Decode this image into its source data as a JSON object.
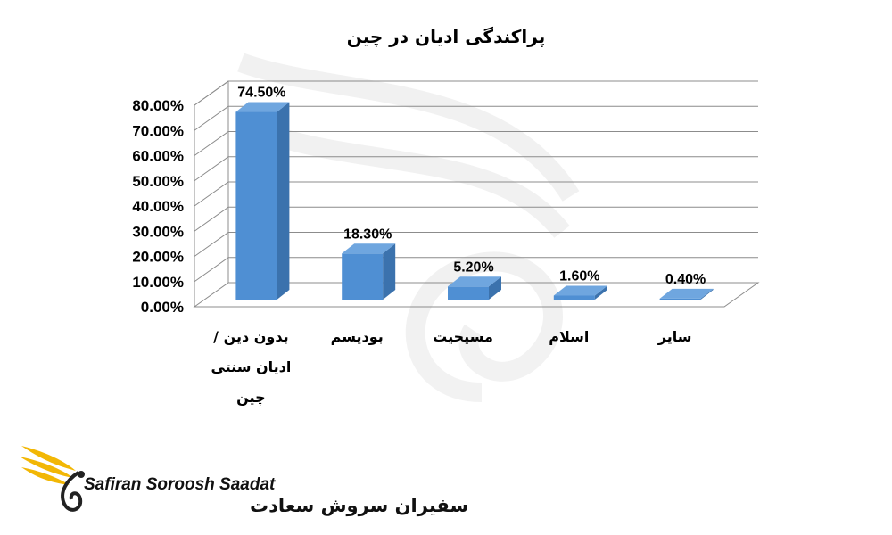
{
  "chart_data": {
    "type": "bar",
    "title": "پراکندگی ادیان در چین",
    "categories": [
      "بدون دین / ادیان سنتی چین",
      "بودیسم",
      "مسیحیت",
      "اسلام",
      "سایر"
    ],
    "category_lines": [
      [
        "بدون دین /",
        "ادیان سنتی",
        "چین"
      ],
      [
        "بودیسم"
      ],
      [
        "مسیحیت"
      ],
      [
        "اسلام"
      ],
      [
        "سایر"
      ]
    ],
    "values": [
      74.5,
      18.3,
      5.2,
      1.6,
      0.4
    ],
    "data_labels": [
      "74.50%",
      "18.30%",
      "5.20%",
      "1.60%",
      "0.40%"
    ],
    "ylim": [
      0,
      80
    ],
    "yticks": [
      "0.00%",
      "10.00%",
      "20.00%",
      "30.00%",
      "40.00%",
      "50.00%",
      "60.00%",
      "70.00%",
      "80.00%"
    ],
    "xlabel": "",
    "ylabel": "",
    "grid": true,
    "style": "3d-column",
    "colors": {
      "bar": "#4f8fd3",
      "bar_side": "#3b72ad",
      "bar_top": "#6fa6df",
      "grid": "#8c8c8c"
    }
  },
  "logo": {
    "text_en": "Safiran Soroosh Saadat",
    "text_fa": "سفیران سروش سعادت",
    "color": "#f2b705"
  }
}
